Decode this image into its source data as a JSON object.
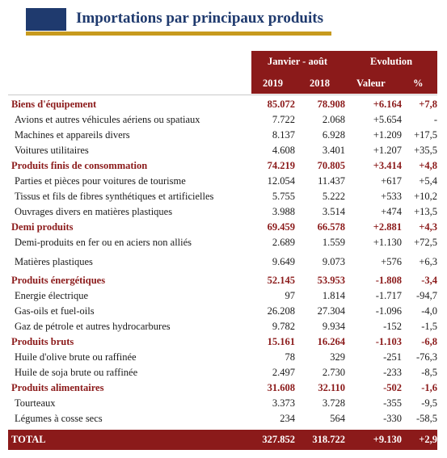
{
  "title": "Importations par principaux produits",
  "colors": {
    "navy": "#1f3a6e",
    "gold": "#c79a1e",
    "maroon": "#8b1a1a"
  },
  "header": {
    "period_label": "Janvier - août",
    "evolution_label": "Evolution",
    "year_1": "2019",
    "year_2": "2018",
    "value_label": "Valeur",
    "percent_label": "%"
  },
  "rows": [
    {
      "type": "cat",
      "label": "Biens d'équipement",
      "v2019": "85.072",
      "v2018": "78.908",
      "value": "+6.164",
      "pct": "+7,8"
    },
    {
      "type": "sub",
      "label": "Avions et autres véhicules aériens ou spatiaux",
      "v2019": "7.722",
      "v2018": "2.068",
      "value": "+5.654",
      "pct": "-"
    },
    {
      "type": "sub",
      "label": "Machines et appareils divers",
      "v2019": "8.137",
      "v2018": "6.928",
      "value": "+1.209",
      "pct": "+17,5"
    },
    {
      "type": "sub",
      "label": "Voitures utilitaires",
      "v2019": "4.608",
      "v2018": "3.401",
      "value": "+1.207",
      "pct": "+35,5"
    },
    {
      "type": "cat",
      "label": "Produits finis de consommation",
      "v2019": "74.219",
      "v2018": "70.805",
      "value": "+3.414",
      "pct": "+4,8"
    },
    {
      "type": "sub",
      "label": "Parties et pièces pour voitures de tourisme",
      "v2019": "12.054",
      "v2018": "11.437",
      "value": "+617",
      "pct": "+5,4"
    },
    {
      "type": "sub",
      "label": "Tissus et fils de fibres synthétiques et artificielles",
      "v2019": "5.755",
      "v2018": "5.222",
      "value": "+533",
      "pct": "+10,2"
    },
    {
      "type": "sub",
      "label": "Ouvrages divers en matières plastiques",
      "v2019": "3.988",
      "v2018": "3.514",
      "value": "+474",
      "pct": "+13,5"
    },
    {
      "type": "cat",
      "label": "Demi produits",
      "v2019": "69.459",
      "v2018": "66.578",
      "value": "+2.881",
      "pct": "+4,3"
    },
    {
      "type": "sub",
      "label": "Demi-produits en fer ou en aciers non alliés",
      "v2019": "2.689",
      "v2018": "1.559",
      "value": "+1.130",
      "pct": "+72,5"
    },
    {
      "type": "sub",
      "label": "Matières plastiques",
      "v2019": "9.649",
      "v2018": "9.073",
      "value": "+576",
      "pct": "+6,3"
    },
    {
      "type": "cat",
      "label": "Produits énergétiques",
      "v2019": "52.145",
      "v2018": "53.953",
      "value": "-1.808",
      "pct": "-3,4"
    },
    {
      "type": "sub",
      "label": "Energie électrique",
      "v2019": "97",
      "v2018": "1.814",
      "value": "-1.717",
      "pct": "-94,7"
    },
    {
      "type": "sub",
      "label": "Gas-oils et fuel-oils",
      "v2019": "26.208",
      "v2018": "27.304",
      "value": "-1.096",
      "pct": "-4,0"
    },
    {
      "type": "sub",
      "label": "Gaz de pétrole et autres hydrocarbures",
      "v2019": "9.782",
      "v2018": "9.934",
      "value": "-152",
      "pct": "-1,5"
    },
    {
      "type": "cat",
      "label": "Produits bruts",
      "v2019": "15.161",
      "v2018": "16.264",
      "value": "-1.103",
      "pct": "-6,8"
    },
    {
      "type": "sub",
      "label": "Huile d'olive brute ou raffinée",
      "v2019": "78",
      "v2018": "329",
      "value": "-251",
      "pct": "-76,3"
    },
    {
      "type": "sub",
      "label": "Huile de soja brute ou raffinée",
      "v2019": "2.497",
      "v2018": "2.730",
      "value": "-233",
      "pct": "-8,5"
    },
    {
      "type": "cat",
      "label": "Produits alimentaires",
      "v2019": "31.608",
      "v2018": "32.110",
      "value": "-502",
      "pct": "-1,6"
    },
    {
      "type": "sub",
      "label": "Tourteaux",
      "v2019": "3.373",
      "v2018": "3.728",
      "value": "-355",
      "pct": "-9,5"
    },
    {
      "type": "sub",
      "label": "Légumes à cosse secs",
      "v2019": "234",
      "v2018": "564",
      "value": "-330",
      "pct": "-58,5"
    }
  ],
  "total": {
    "label": "TOTAL",
    "v2019": "327.852",
    "v2018": "318.722",
    "value": "+9.130",
    "pct": "+2,9"
  }
}
